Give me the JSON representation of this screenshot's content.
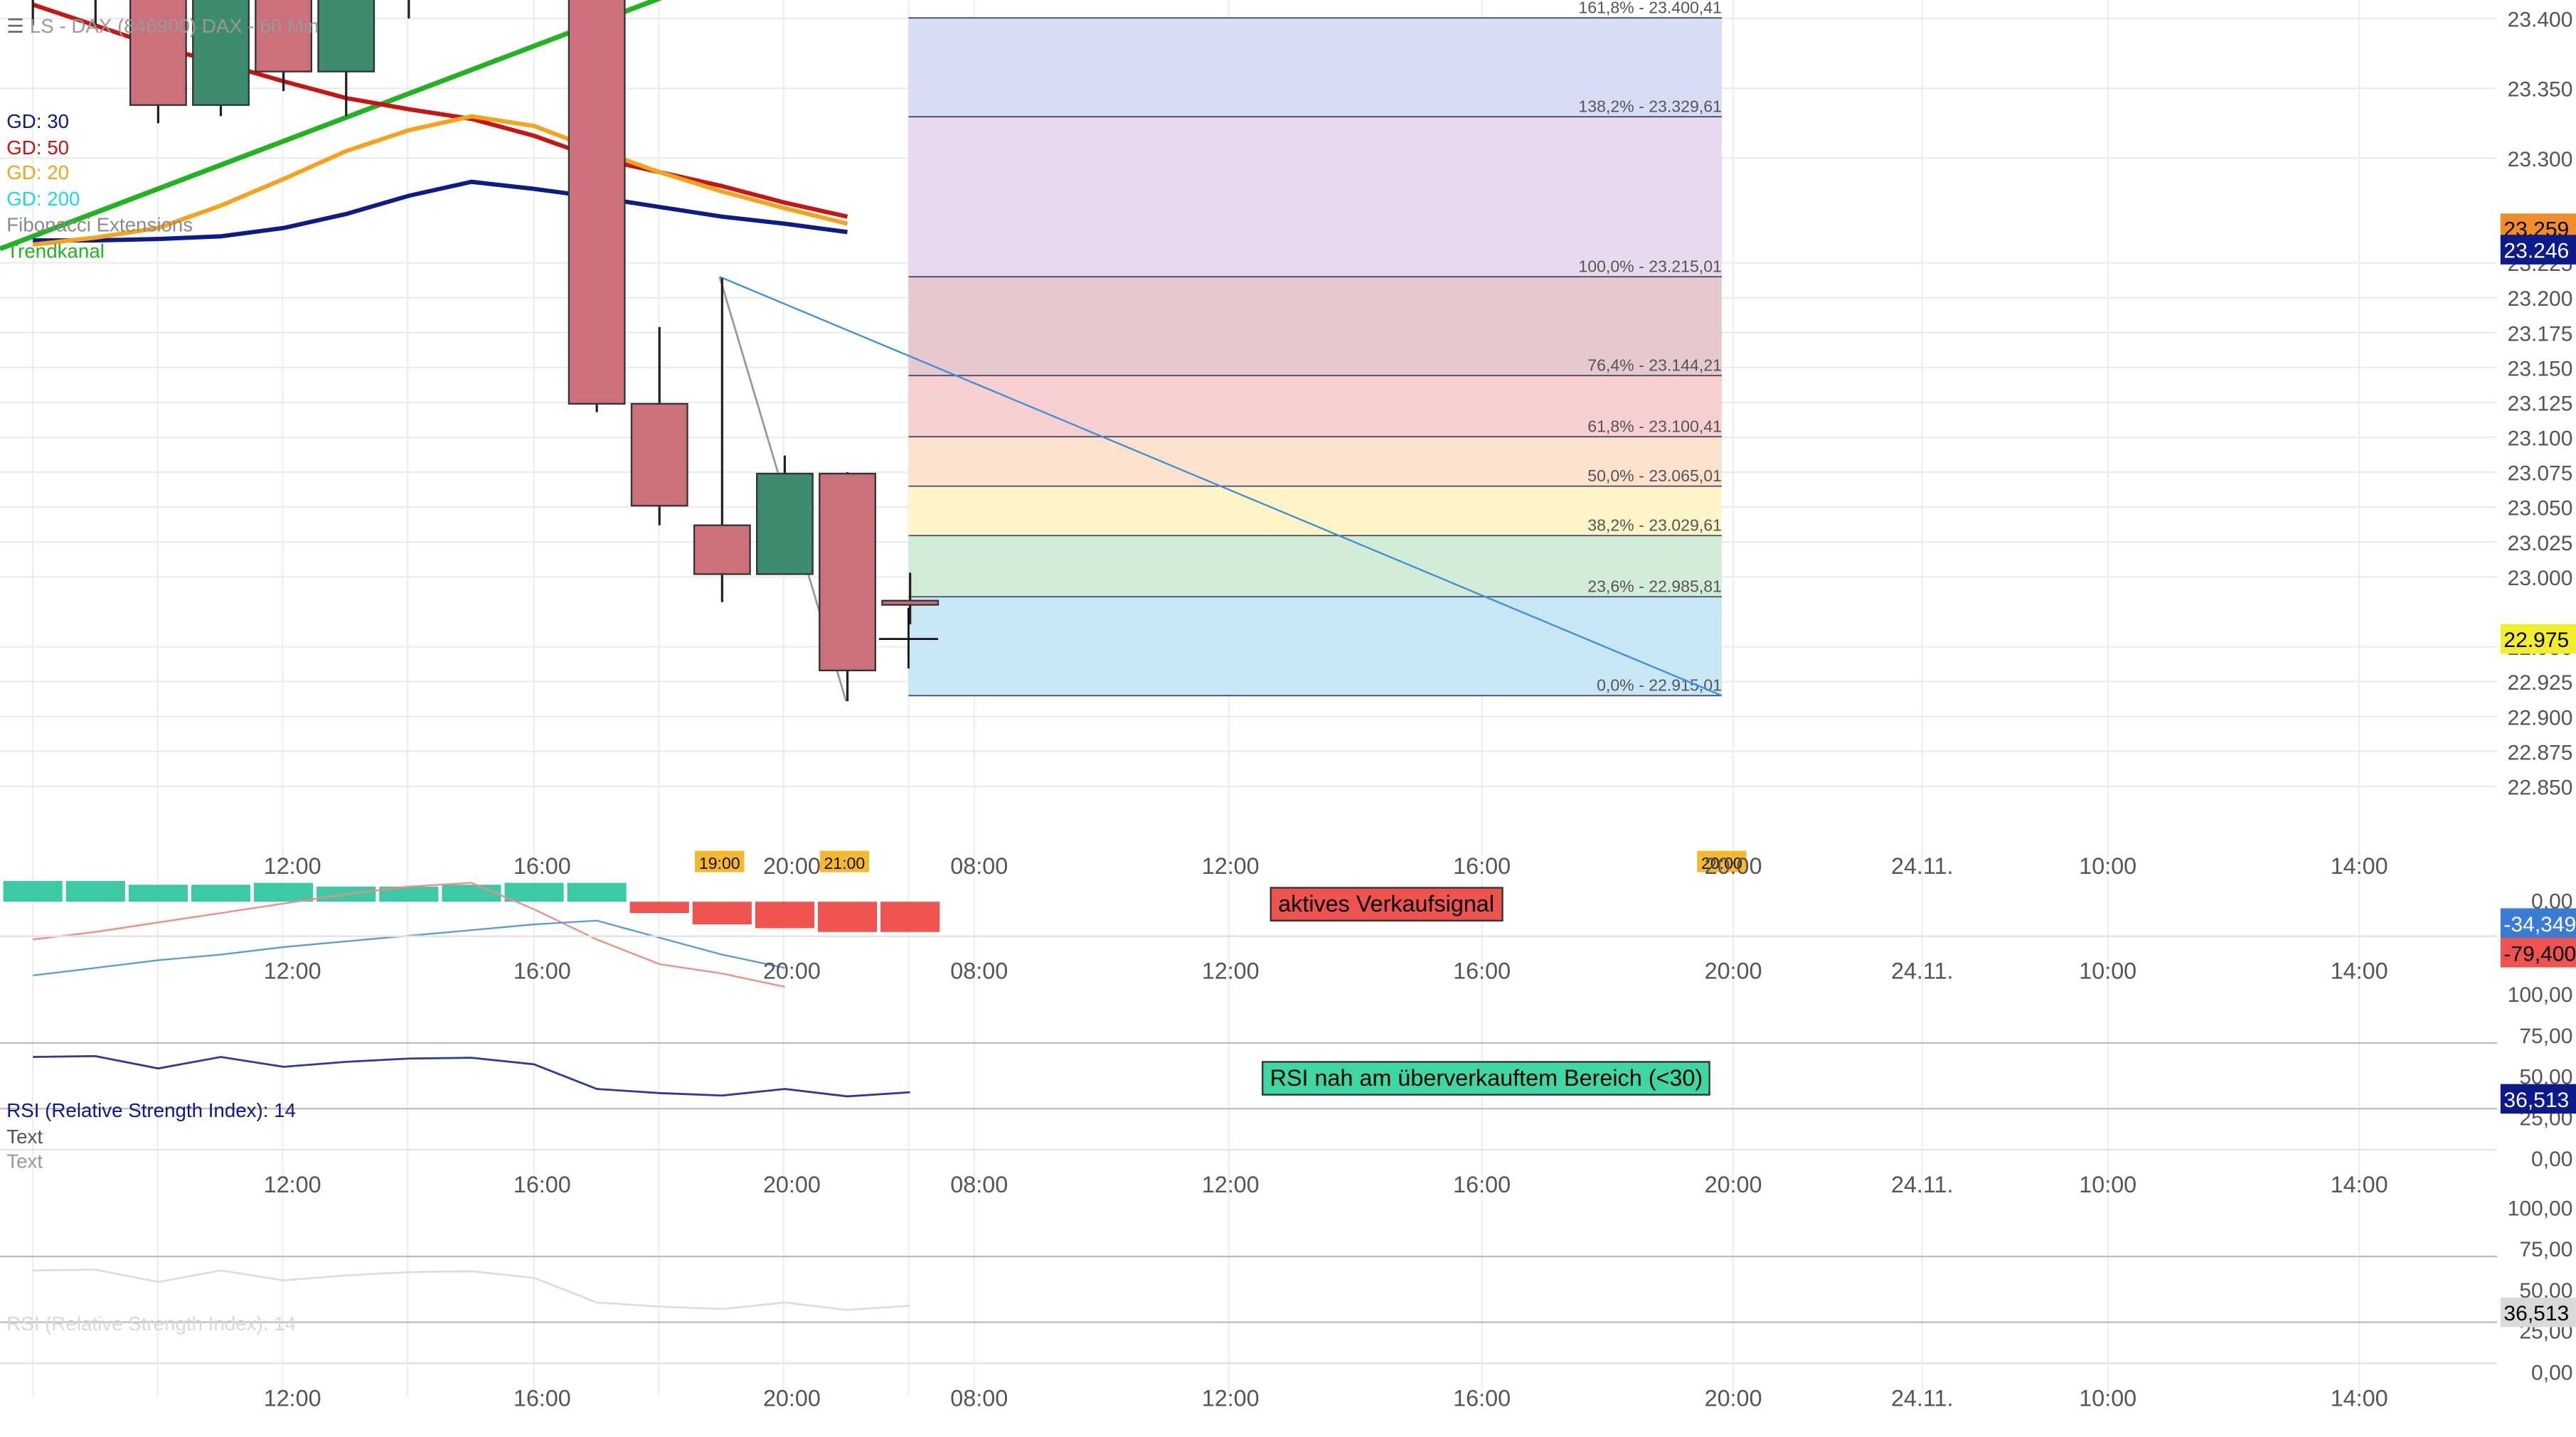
{
  "header": {
    "title": "LS - DAX (846900) DAX - 60 Min",
    "legend": [
      {
        "label": "GD: 30",
        "color": "#0d1a8a"
      },
      {
        "label": "GD: 50",
        "color": "#c81414"
      },
      {
        "label": "GD: 20",
        "color": "#f5a21c"
      },
      {
        "label": "GD: 200",
        "color": "#1ad8e6"
      },
      {
        "label": "Fibonacci Extensions",
        "color": "#8a8a8a"
      },
      {
        "label": "Trendkanal",
        "color": "#21b321"
      }
    ]
  },
  "annotations": {
    "macd_signal": "aktives Verkaufsignal",
    "rsi_signal": "RSI nah am überverkauftem Bereich (<30)"
  },
  "colors": {
    "bull": "#3d8c6e",
    "bear": "#cc707c",
    "grid": "#e6e6e6"
  },
  "chart_data": [
    {
      "type": "candlestick",
      "title": "LS - DAX (846900) DAX - 60 Min",
      "ylim": [
        22825,
        23425
      ],
      "yticks": [
        "23.400",
        "23.350",
        "23.300",
        "23.225",
        "23.200",
        "23.175",
        "23.150",
        "23.125",
        "23.100",
        "23.075",
        "23.050",
        "23.025",
        "23.000",
        "22.950",
        "22.925",
        "22.900",
        "22.875",
        "22.850"
      ],
      "xticks": [
        "12:00",
        "16:00",
        "19:00",
        "20:00",
        "21:00",
        "08:00",
        "12:00",
        "16:00",
        "20:00",
        "20:00",
        "24.11.",
        "10:00",
        "14:00"
      ],
      "price_labels": [
        {
          "text": "23.259",
          "bg": "#f28c28",
          "fg": "#000"
        },
        {
          "text": "23.246",
          "bg": "#0d1a8a",
          "fg": "#fff"
        },
        {
          "text": "22.975",
          "bg": "#f2ee2c",
          "fg": "#000"
        }
      ],
      "candles": [
        {
          "open": 23415,
          "high": 23440,
          "low": 23395,
          "close": 23420
        },
        {
          "open": 23430,
          "high": 23445,
          "low": 23395,
          "close": 23435
        },
        {
          "open": 23420,
          "high": 23430,
          "low": 23325,
          "close": 23338
        },
        {
          "open": 23338,
          "high": 23440,
          "low": 23330,
          "close": 23430
        },
        {
          "open": 23430,
          "high": 23440,
          "low": 23348,
          "close": 23362
        },
        {
          "open": 23362,
          "high": 23440,
          "low": 23330,
          "close": 23420
        },
        {
          "open": 23420,
          "high": 23440,
          "low": 23400,
          "close": 23440
        },
        {
          "open": 23440,
          "high": 23450,
          "low": 23420,
          "close": 23445
        },
        {
          "open": 23440,
          "high": 23445,
          "low": 23430,
          "close": 23438
        },
        {
          "open": 23445,
          "high": 23450,
          "low": 23118,
          "close": 23124
        },
        {
          "open": 23124,
          "high": 23179,
          "low": 23037,
          "close": 23051
        },
        {
          "open": 23037,
          "high": 23214,
          "low": 22982,
          "close": 23002
        },
        {
          "open": 23002,
          "high": 23087,
          "low": 23002,
          "close": 23074
        },
        {
          "open": 23074,
          "high": 23075,
          "low": 22911,
          "close": 22933
        },
        {
          "open": 22983,
          "high": 23003,
          "low": 22966,
          "close": 22980
        }
      ],
      "fibonacci": [
        {
          "label": "161,8% - 23.400,41",
          "value": 23400.41,
          "color": "#d8dcf4"
        },
        {
          "label": "138,2% - 23.329,61",
          "value": 23329.61,
          "color": "#e8d9ee"
        },
        {
          "label": "100,0% - 23.215,01",
          "value": 23215.01,
          "color": "#e6c9cc"
        },
        {
          "label": "76,4% - 23.144,21",
          "value": 23144.21,
          "color": "#f8cfd0"
        },
        {
          "label": "61,8% - 23.100,41",
          "value": 23100.41,
          "color": "#fce1cc"
        },
        {
          "label": "50,0% - 23.065,01",
          "value": 23065.01,
          "color": "#fdf5c8"
        },
        {
          "label": "38,2% - 23.029,61",
          "value": 23029.61,
          "color": "#d3ecd7"
        },
        {
          "label": "23,6% - 22.985,81",
          "value": 22985.81,
          "color": "#c9e6f5"
        },
        {
          "label": "0,0% - 22.915,01",
          "value": 22915.01,
          "color": "#c9e6f5"
        }
      ],
      "moving_averages": [
        {
          "name": "GD: 30",
          "color": "#0d1a8a",
          "values": [
            23241,
            23241,
            23242,
            23244,
            23250,
            23260,
            23273,
            23283,
            23278,
            23272,
            23265,
            23258,
            23253,
            23247
          ]
        },
        {
          "name": "GD: 50",
          "color": "#c81414",
          "values": [
            23410,
            23395,
            23380,
            23368,
            23355,
            23343,
            23335,
            23328,
            23316,
            23300,
            23290,
            23280,
            23268,
            23258
          ]
        },
        {
          "name": "GD: 20",
          "color": "#f5a21c",
          "values": [
            23238,
            23243,
            23250,
            23266,
            23285,
            23305,
            23320,
            23330,
            23323,
            23306,
            23290,
            23276,
            23264,
            23253
          ]
        }
      ]
    },
    {
      "type": "bar",
      "title": "MACD",
      "yticks": [
        "0,00"
      ],
      "price_labels": [
        {
          "text": "-34,349",
          "bg": "#3a7bd5",
          "fg": "#fff"
        },
        {
          "text": "-79,400",
          "bg": "#ef5350",
          "fg": "#000"
        }
      ],
      "histogram": [
        11,
        11,
        9,
        9,
        10,
        8,
        8,
        9,
        10,
        10,
        -6,
        -12,
        -14,
        -16,
        -16
      ],
      "macd_line": [
        -20,
        -16,
        -11,
        -6,
        -1,
        4,
        8,
        10,
        -4,
        -20,
        -33,
        -38,
        -45
      ],
      "signal_line": [
        -39,
        -35,
        -31,
        -28,
        -24,
        -21,
        -18,
        -15,
        -12,
        -10,
        -19,
        -28,
        -35
      ]
    },
    {
      "type": "line",
      "title": "RSI (Relative Strength Index): 14",
      "sub_labels": [
        "Text",
        "Text"
      ],
      "ylim": [
        0,
        100
      ],
      "yticks": [
        "100,00",
        "75,00",
        "50,00",
        "25,00",
        "0,00"
      ],
      "price_labels": [
        {
          "text": "36,513",
          "bg": "#0d1a8a",
          "fg": "#fff"
        }
      ],
      "values": [
        61.5,
        62.0,
        54.5,
        61.5,
        55.5,
        58.5,
        60.5,
        61.0,
        57.0,
        42.0,
        39.5,
        38.0,
        42.0,
        37.5,
        40.0
      ]
    },
    {
      "type": "line",
      "title": "RSI (Relative Strength Index): 14",
      "ylim": [
        0,
        100
      ],
      "yticks": [
        "100,00",
        "75,00",
        "50,00",
        "25,00",
        "0,00"
      ],
      "price_labels": [
        {
          "text": "36,513",
          "bg": "#d9d9d9",
          "fg": "#000"
        }
      ],
      "values": [
        61.5,
        62.0,
        54.5,
        61.5,
        55.5,
        58.5,
        60.5,
        61.0,
        57.0,
        42.0,
        39.5,
        38.0,
        42.0,
        37.5,
        40.0
      ]
    }
  ]
}
